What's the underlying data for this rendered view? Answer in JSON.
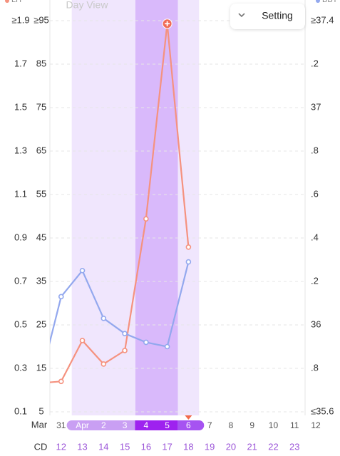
{
  "chart_data": {
    "type": "line",
    "view_label": "Day View",
    "button_label": "Setting",
    "date_row_label": "Mar",
    "cd_row_label": "CD",
    "categories": [
      null,
      "31",
      "Apr",
      "2",
      "3",
      "4",
      "5",
      "6",
      "7",
      "8",
      "9",
      "10",
      "11",
      "12"
    ],
    "cycle_days": [
      null,
      "12",
      "13",
      "14",
      "15",
      "16",
      "17",
      "18",
      "19",
      "20",
      "21",
      "22",
      "23",
      null
    ],
    "series": [
      {
        "name": "LH",
        "color": "#f5927f",
        "peak_marker": true,
        "values": [
          11.6,
          12.0,
          21.4,
          16.0,
          19.1,
          49.4,
          94.3,
          42.9,
          null,
          null,
          null,
          null,
          null,
          null
        ]
      },
      {
        "name": "BBT",
        "color": "#93a8ee",
        "axis": "y2",
        "values": [
          35.74,
          36.13,
          36.25,
          36.03,
          35.96,
          35.92,
          35.9,
          36.29,
          null,
          null,
          null,
          null,
          null,
          null
        ]
      }
    ],
    "fertile_window": [
      2,
      7
    ],
    "ovulation_days": [
      5,
      6
    ],
    "today_index": 7,
    "ylim": [
      5,
      95
    ],
    "yticks": [
      5,
      15,
      25,
      35,
      45,
      55,
      65,
      75,
      85,
      {
        "value": 95,
        "label": "≥95"
      }
    ],
    "y3lim": [
      0.1,
      1.9
    ],
    "y3ticks": [
      0.1,
      0.3,
      0.5,
      0.7,
      0.9,
      1.1,
      1.3,
      1.5,
      1.7,
      {
        "value": 1.9,
        "label": "≥1.9"
      }
    ],
    "y2lim": [
      35.6,
      37.4
    ],
    "y2ticks": [
      {
        "value": 35.6,
        "label": "≤35.6"
      },
      {
        "value": 35.8,
        "label": ".8"
      },
      36,
      {
        "value": 36.2,
        "label": ".2"
      },
      {
        "value": 36.4,
        "label": ".4"
      },
      {
        "value": 36.6,
        "label": ".6"
      },
      {
        "value": 36.8,
        "label": ".8"
      },
      37,
      {
        "value": 37.2,
        "label": ".2"
      },
      {
        "value": 37.4,
        "label": "≥37.4"
      }
    ],
    "grid": true
  }
}
